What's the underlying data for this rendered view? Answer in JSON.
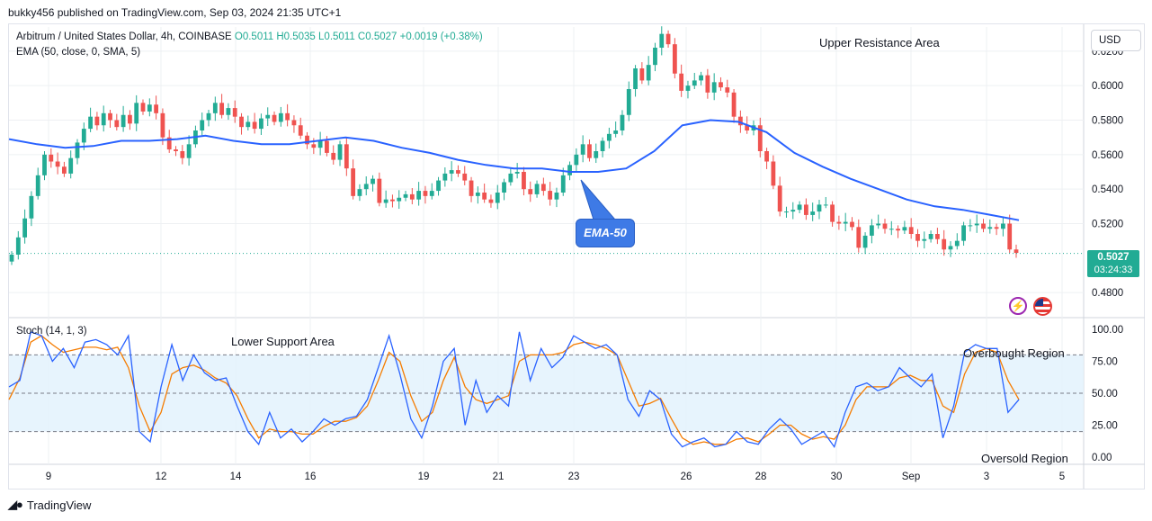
{
  "header": {
    "publisher": "bukky456 published on TradingView.com, Sep 03, 2024 21:35 UTC+1"
  },
  "legend": {
    "symbol": "Arbitrum / United States Dollar, 4h, COINBASE",
    "ohlc": "O0.5011  H0.5035  L0.5011  C0.5027  +0.0019 (+0.38%)",
    "ema": "EMA (50, close, 0, SMA, 5)",
    "stoch": "Stoch (14, 1, 3)"
  },
  "currency": "USD",
  "last_price": {
    "price": "0.5027",
    "countdown": "03:24:33"
  },
  "annotations": {
    "upper": "Upper Resistance Area",
    "lower": "Lower Support Area",
    "overbought": "Overbought Region",
    "oversold": "Oversold Region",
    "ema_callout": "EMA-50"
  },
  "footer": {
    "brand": "TradingView"
  },
  "colors": {
    "up": "#22ab94",
    "down": "#ef5350",
    "ema": "#2962ff",
    "stoch_k": "#2962ff",
    "stoch_d": "#f57c00",
    "band": "#e3f2fd",
    "grid": "#eef0f3"
  },
  "chart_data": [
    {
      "type": "candlestick",
      "title": "Arbitrum / United States Dollar, 4h, COINBASE",
      "x_ticks": [
        "9",
        "12",
        "14",
        "16",
        "19",
        "21",
        "23",
        "26",
        "28",
        "30",
        "Sep",
        "3",
        "5"
      ],
      "y_ticks": [
        "0.6200",
        "0.6000",
        "0.5800",
        "0.5600",
        "0.5400",
        "0.5200",
        "0.4800"
      ],
      "ylim": [
        0.466,
        0.634
      ],
      "series": [
        {
          "name": "ARBUSD",
          "kind": "ohlc",
          "close_path": [
            0.502,
            0.512,
            0.523,
            0.536,
            0.548,
            0.56,
            0.556,
            0.553,
            0.549,
            0.558,
            0.567,
            0.575,
            0.582,
            0.577,
            0.584,
            0.58,
            0.576,
            0.583,
            0.578,
            0.59,
            0.585,
            0.589,
            0.584,
            0.57,
            0.563,
            0.562,
            0.558,
            0.566,
            0.574,
            0.58,
            0.584,
            0.59,
            0.583,
            0.587,
            0.582,
            0.576,
            0.579,
            0.575,
            0.581,
            0.583,
            0.579,
            0.584,
            0.58,
            0.577,
            0.571,
            0.566,
            0.564,
            0.568,
            0.561,
            0.557,
            0.566,
            0.552,
            0.536,
            0.54,
            0.543,
            0.546,
            0.532,
            0.534,
            0.533,
            0.535,
            0.537,
            0.534,
            0.539,
            0.536,
            0.539,
            0.545,
            0.549,
            0.551,
            0.549,
            0.545,
            0.536,
            0.538,
            0.534,
            0.532,
            0.538,
            0.544,
            0.549,
            0.55,
            0.54,
            0.537,
            0.543,
            0.539,
            0.534,
            0.538,
            0.548,
            0.554,
            0.56,
            0.566,
            0.558,
            0.562,
            0.568,
            0.572,
            0.574,
            0.583,
            0.598,
            0.61,
            0.603,
            0.612,
            0.622,
            0.63,
            0.624,
            0.607,
            0.597,
            0.6,
            0.603,
            0.606,
            0.596,
            0.602,
            0.599,
            0.596,
            0.582,
            0.577,
            0.574,
            0.577,
            0.562,
            0.556,
            0.542,
            0.527,
            0.527,
            0.528,
            0.531,
            0.525,
            0.527,
            0.531,
            0.531,
            0.521,
            0.52,
            0.521,
            0.518,
            0.506,
            0.513,
            0.519,
            0.52,
            0.517,
            0.517,
            0.516,
            0.518,
            0.514,
            0.51,
            0.511,
            0.514,
            0.511,
            0.505,
            0.507,
            0.51,
            0.519,
            0.519,
            0.52,
            0.517,
            0.518,
            0.517,
            0.52,
            0.505,
            0.503
          ]
        },
        {
          "name": "EMA (50, close, 0, SMA, 5)",
          "kind": "line",
          "values": [
            0.569,
            0.566,
            0.564,
            0.565,
            0.568,
            0.568,
            0.569,
            0.571,
            0.568,
            0.566,
            0.566,
            0.568,
            0.57,
            0.568,
            0.564,
            0.561,
            0.557,
            0.554,
            0.552,
            0.552,
            0.55,
            0.55,
            0.552,
            0.562,
            0.577,
            0.58,
            0.579,
            0.573,
            0.561,
            0.553,
            0.546,
            0.54,
            0.534,
            0.53,
            0.528,
            0.525,
            0.522
          ]
        }
      ]
    },
    {
      "type": "line",
      "title": "Stoch (14, 1, 3)",
      "y_ticks": [
        "100.00",
        "75.00",
        "50.00",
        "25.00",
        "0.00"
      ],
      "ylim": [
        0,
        100
      ],
      "levels": {
        "upper": 80,
        "middle": 50,
        "lower": 20
      },
      "series": [
        {
          "name": "%K",
          "values": [
            55,
            60,
            98,
            95,
            75,
            85,
            70,
            90,
            92,
            88,
            80,
            95,
            20,
            12,
            55,
            88,
            60,
            80,
            66,
            60,
            62,
            40,
            20,
            10,
            35,
            15,
            22,
            12,
            20,
            30,
            25,
            30,
            32,
            45,
            70,
            95,
            65,
            30,
            15,
            40,
            75,
            85,
            25,
            60,
            35,
            48,
            40,
            98,
            60,
            85,
            70,
            78,
            95,
            90,
            85,
            88,
            80,
            45,
            32,
            52,
            45,
            18,
            8,
            12,
            15,
            8,
            10,
            20,
            12,
            10,
            22,
            30,
            22,
            10,
            15,
            20,
            8,
            35,
            55,
            58,
            52,
            55,
            70,
            62,
            55,
            65,
            15,
            40,
            82,
            88,
            85,
            85,
            35,
            45
          ]
        },
        {
          "name": "%D",
          "values": [
            45,
            62,
            90,
            95,
            88,
            82,
            84,
            86,
            86,
            84,
            86,
            70,
            40,
            20,
            35,
            65,
            70,
            72,
            68,
            62,
            58,
            48,
            30,
            15,
            22,
            20,
            20,
            18,
            18,
            24,
            28,
            28,
            31,
            40,
            60,
            82,
            75,
            48,
            28,
            35,
            60,
            78,
            55,
            45,
            42,
            45,
            48,
            75,
            80,
            80,
            80,
            82,
            88,
            90,
            88,
            85,
            80,
            60,
            40,
            42,
            46,
            30,
            15,
            10,
            12,
            10,
            10,
            14,
            15,
            12,
            18,
            25,
            25,
            18,
            14,
            16,
            14,
            25,
            45,
            55,
            55,
            55,
            62,
            64,
            60,
            60,
            40,
            35,
            65,
            82,
            85,
            82,
            60,
            45
          ]
        }
      ]
    }
  ]
}
